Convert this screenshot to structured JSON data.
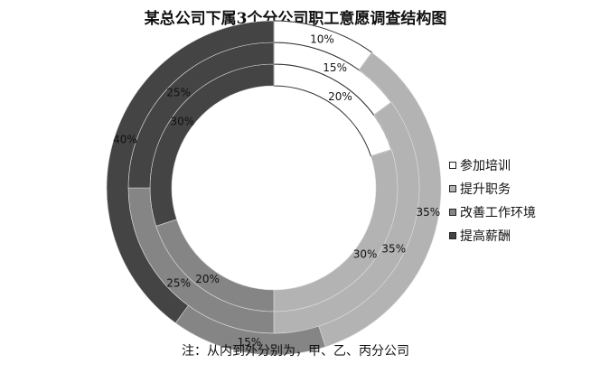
{
  "chart_data": {
    "type": "donut",
    "title": "某总公司下属3个分公司职工意愿调查结构图",
    "categories": [
      "参加培训",
      "提升职务",
      "改善工作环境",
      "提高薪酬"
    ],
    "colors": [
      "#ffffff",
      "#b3b3b3",
      "#858585",
      "#444444"
    ],
    "series": [
      {
        "name": "甲",
        "values": [
          20,
          30,
          20,
          30
        ]
      },
      {
        "name": "乙",
        "values": [
          15,
          35,
          25,
          25
        ]
      },
      {
        "name": "丙",
        "values": [
          10,
          35,
          15,
          40
        ]
      }
    ],
    "value_suffix": "%",
    "legend_position": "right",
    "note": "注：从内到外分别为，甲、乙、丙分公司"
  }
}
